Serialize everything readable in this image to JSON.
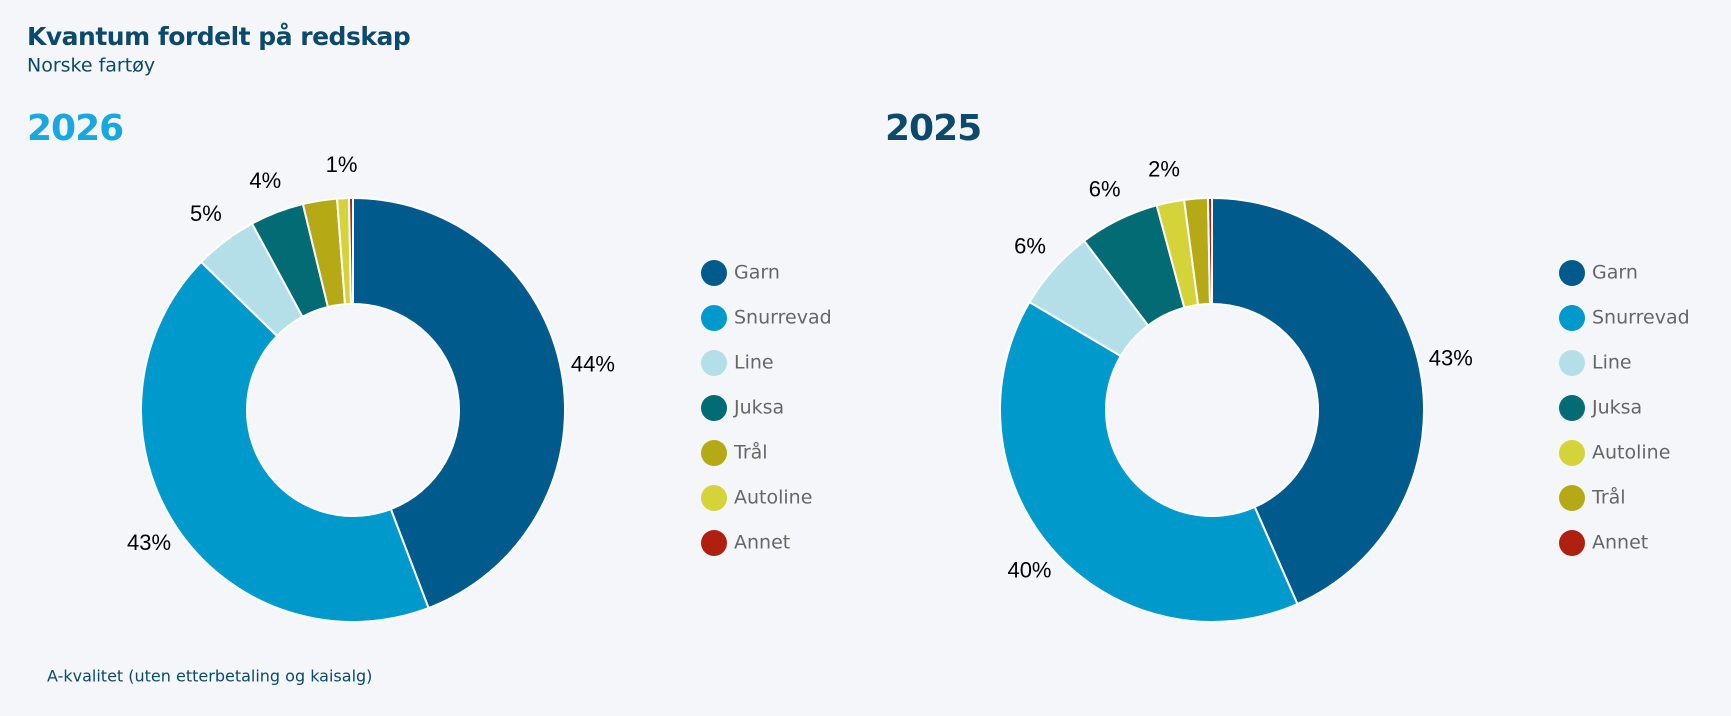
{
  "title": "Kvantum fordelt på redskap",
  "subtitle": "Norske fartøy",
  "note": "A-kvalitet (uten etterbetaling og kaisalg)",
  "chart_data": [
    {
      "type": "donut",
      "title": "2026",
      "title_color": "#1aa7e0",
      "categories": [
        "Garn",
        "Snurrevad",
        "Line",
        "Juksa",
        "Trål",
        "Autoline",
        "Annet"
      ],
      "colors": [
        "#005a8c",
        "#0099cc",
        "#b4dfe8",
        "#036b73",
        "#b5aa15",
        "#d4d43a",
        "#b02010"
      ],
      "values": [
        44.2,
        43.1,
        4.8,
        4.1,
        2.6,
        0.9,
        0.3
      ],
      "value_labels": [
        "44%",
        "43%",
        "5%",
        "4%",
        null,
        "1%",
        null
      ]
    },
    {
      "type": "donut",
      "title": "2025",
      "title_color": "#0b4a6b",
      "categories": [
        "Garn",
        "Snurrevad",
        "Line",
        "Juksa",
        "Autoline",
        "Trål",
        "Annet"
      ],
      "colors": [
        "#005a8c",
        "#0099cc",
        "#b4dfe8",
        "#036b73",
        "#d4d43a",
        "#b5aa15",
        "#b02010"
      ],
      "values": [
        43.4,
        40.1,
        6.2,
        6.1,
        2.1,
        1.8,
        0.3
      ],
      "value_labels": [
        "43%",
        "40%",
        "6%",
        "6%",
        "2%",
        null,
        null
      ]
    }
  ]
}
